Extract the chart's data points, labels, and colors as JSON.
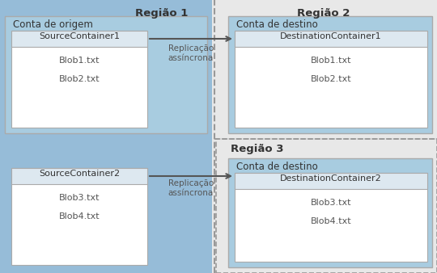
{
  "fig_w": 5.4,
  "fig_h": 3.38,
  "dpi": 100,
  "bg_color": "#e8e8e8",
  "region1_bg": "#96bcd8",
  "region23_bg": "#e8e8e8",
  "account_blue": "#a8cce0",
  "container_white": "#ffffff",
  "container_header": "#dde8f0",
  "region1_label": "Região 1",
  "region2_label": "Região 2",
  "region3_label": "Região 3",
  "source_account_label": "Conta de origem",
  "dest_account_label": "Conta de destino",
  "source_container1": "SourceContainer1",
  "source_container2": "SourceContainer2",
  "dest_container1": "DestinationContainer1",
  "dest_container2": "DestinationContainer2",
  "source_blobs1": [
    "Blob1.txt",
    "Blob2.txt"
  ],
  "source_blobs2": [
    "Blob3.txt",
    "Blob4.txt"
  ],
  "dest_blobs1": [
    "Blob1.txt",
    "Blob2.txt"
  ],
  "dest_blobs2": [
    "Blob3.txt",
    "Blob4.txt"
  ],
  "arrow_label1": "Replicação\nassíncrona",
  "arrow_label2": "Replicação\nassíncrona",
  "region_fontsize": 9.5,
  "account_fontsize": 8.5,
  "container_fontsize": 8.0,
  "blob_fontsize": 8.0,
  "arrow_fontsize": 7.5,
  "dashed_color": "#999999",
  "border_color": "#aaaaaa",
  "arrow_color": "#555555",
  "text_dark": "#333333",
  "text_mid": "#555555"
}
